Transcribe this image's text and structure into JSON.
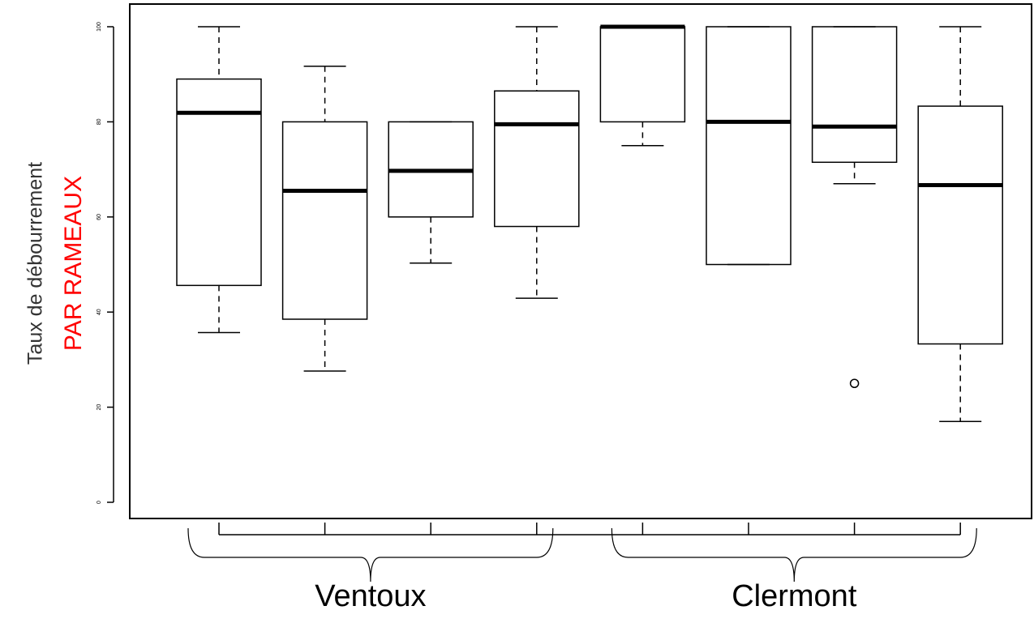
{
  "chart_data": {
    "type": "boxplot",
    "y_label": "Taux de débourrement",
    "y_label_2": "PAR RAMEAUX",
    "categories": [
      null,
      null,
      null,
      null,
      null,
      null,
      null,
      null
    ],
    "groups": [
      {
        "name": "Ventoux",
        "size": 4
      },
      {
        "name": "Clermont",
        "size": 4
      }
    ],
    "boxes": [
      {
        "whislo": 35.7,
        "q1": 45.6,
        "med": 81.9,
        "q3": 89,
        "whishi": 100,
        "fliers": []
      },
      {
        "whislo": 27.6,
        "q1": 38.5,
        "med": 65.5,
        "q3": 80,
        "whishi": 91.7,
        "fliers": []
      },
      {
        "whislo": 50.3,
        "q1": 60,
        "med": 69.7,
        "q3": 80,
        "whishi": 80,
        "fliers": []
      },
      {
        "whislo": 42.9,
        "q1": 58,
        "med": 79.5,
        "q3": 86.5,
        "whishi": 100,
        "fliers": []
      },
      {
        "whislo": 75,
        "q1": 80,
        "med": 100,
        "q3": 100,
        "whishi": 100,
        "fliers": []
      },
      {
        "whislo": 50,
        "q1": 50,
        "med": 80,
        "q3": 100,
        "whishi": 100,
        "fliers": []
      },
      {
        "whislo": 67,
        "q1": 71.5,
        "med": 79,
        "q3": 100,
        "whishi": 100,
        "fliers": [
          25
        ]
      },
      {
        "whislo": 17,
        "q1": 33.3,
        "med": 66.7,
        "q3": 83.3,
        "whishi": 100,
        "fliers": []
      }
    ],
    "ylim": [
      0,
      100
    ],
    "yticks": [
      0,
      20,
      40,
      60,
      80,
      100
    ],
    "label_color_2": "#ff0000"
  }
}
